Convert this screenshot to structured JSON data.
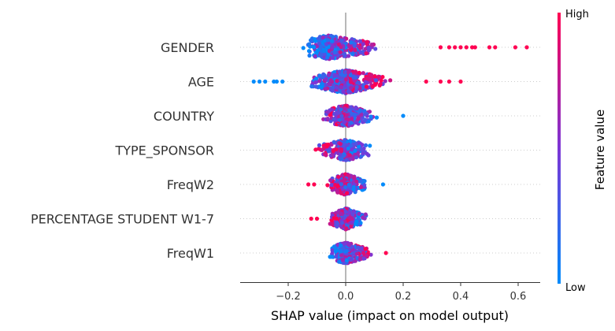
{
  "chart_data": {
    "type": "scatter",
    "subtype": "shap-beeswarm",
    "xlabel": "SHAP value (impact on model output)",
    "xlim": [
      -0.36,
      0.67
    ],
    "xticks": [
      {
        "value": -0.2,
        "label": "−0.2"
      },
      {
        "value": 0.0,
        "label": "0.0"
      },
      {
        "value": 0.2,
        "label": "0.2"
      },
      {
        "value": 0.4,
        "label": "0.4"
      },
      {
        "value": 0.6,
        "label": "0.6"
      }
    ],
    "grid": false,
    "zero_line": true,
    "colorbar": {
      "title": "Feature value",
      "high_label": "High",
      "low_label": "Low",
      "low_color": "#008bfb",
      "high_color": "#ff0052"
    },
    "features": [
      {
        "name": "GENDER",
        "min": -0.21,
        "max": 0.63,
        "dense_range": [
          -0.18,
          0.22
        ],
        "peak": -0.06,
        "mean_value_color_high_side": "high",
        "outliers": [
          0.33,
          0.36,
          0.38,
          0.4,
          0.42,
          0.44,
          0.45,
          0.5,
          0.52,
          0.59,
          0.63
        ]
      },
      {
        "name": "AGE",
        "min": -0.32,
        "max": 0.4,
        "dense_range": [
          -0.2,
          0.22
        ],
        "peak": 0.0,
        "mean_value_color_high_side": "high",
        "outliers": [
          -0.32,
          -0.3,
          -0.28,
          -0.25,
          -0.24,
          -0.22,
          0.28,
          0.33,
          0.36,
          0.4
        ]
      },
      {
        "name": "COUNTRY",
        "min": -0.13,
        "max": 0.2,
        "dense_range": [
          -0.13,
          0.17
        ],
        "peak": 0.0,
        "mean_value_color_high_side": "low",
        "outliers": [
          0.2
        ]
      },
      {
        "name": "TYPE_SPONSOR",
        "min": -0.17,
        "max": 0.14,
        "dense_range": [
          -0.17,
          0.14
        ],
        "peak": 0.0,
        "mean_value_color_high_side": "low",
        "outliers": []
      },
      {
        "name": "FreqW2",
        "min": -0.13,
        "max": 0.13,
        "dense_range": [
          -0.09,
          0.12
        ],
        "peak": 0.0,
        "mean_value_color_high_side": "low",
        "outliers": [
          -0.13,
          -0.11,
          0.13
        ]
      },
      {
        "name": "PERCENTAGE STUDENT W1-7",
        "min": -0.12,
        "max": 0.12,
        "dense_range": [
          -0.09,
          0.12
        ],
        "peak": 0.0,
        "mean_value_color_high_side": "low",
        "outliers": [
          -0.12,
          -0.1
        ]
      },
      {
        "name": "FreqW1",
        "min": -0.09,
        "max": 0.14,
        "dense_range": [
          -0.09,
          0.14
        ],
        "peak": 0.0,
        "mean_value_color_high_side": "high",
        "outliers": [
          0.14
        ]
      }
    ]
  }
}
